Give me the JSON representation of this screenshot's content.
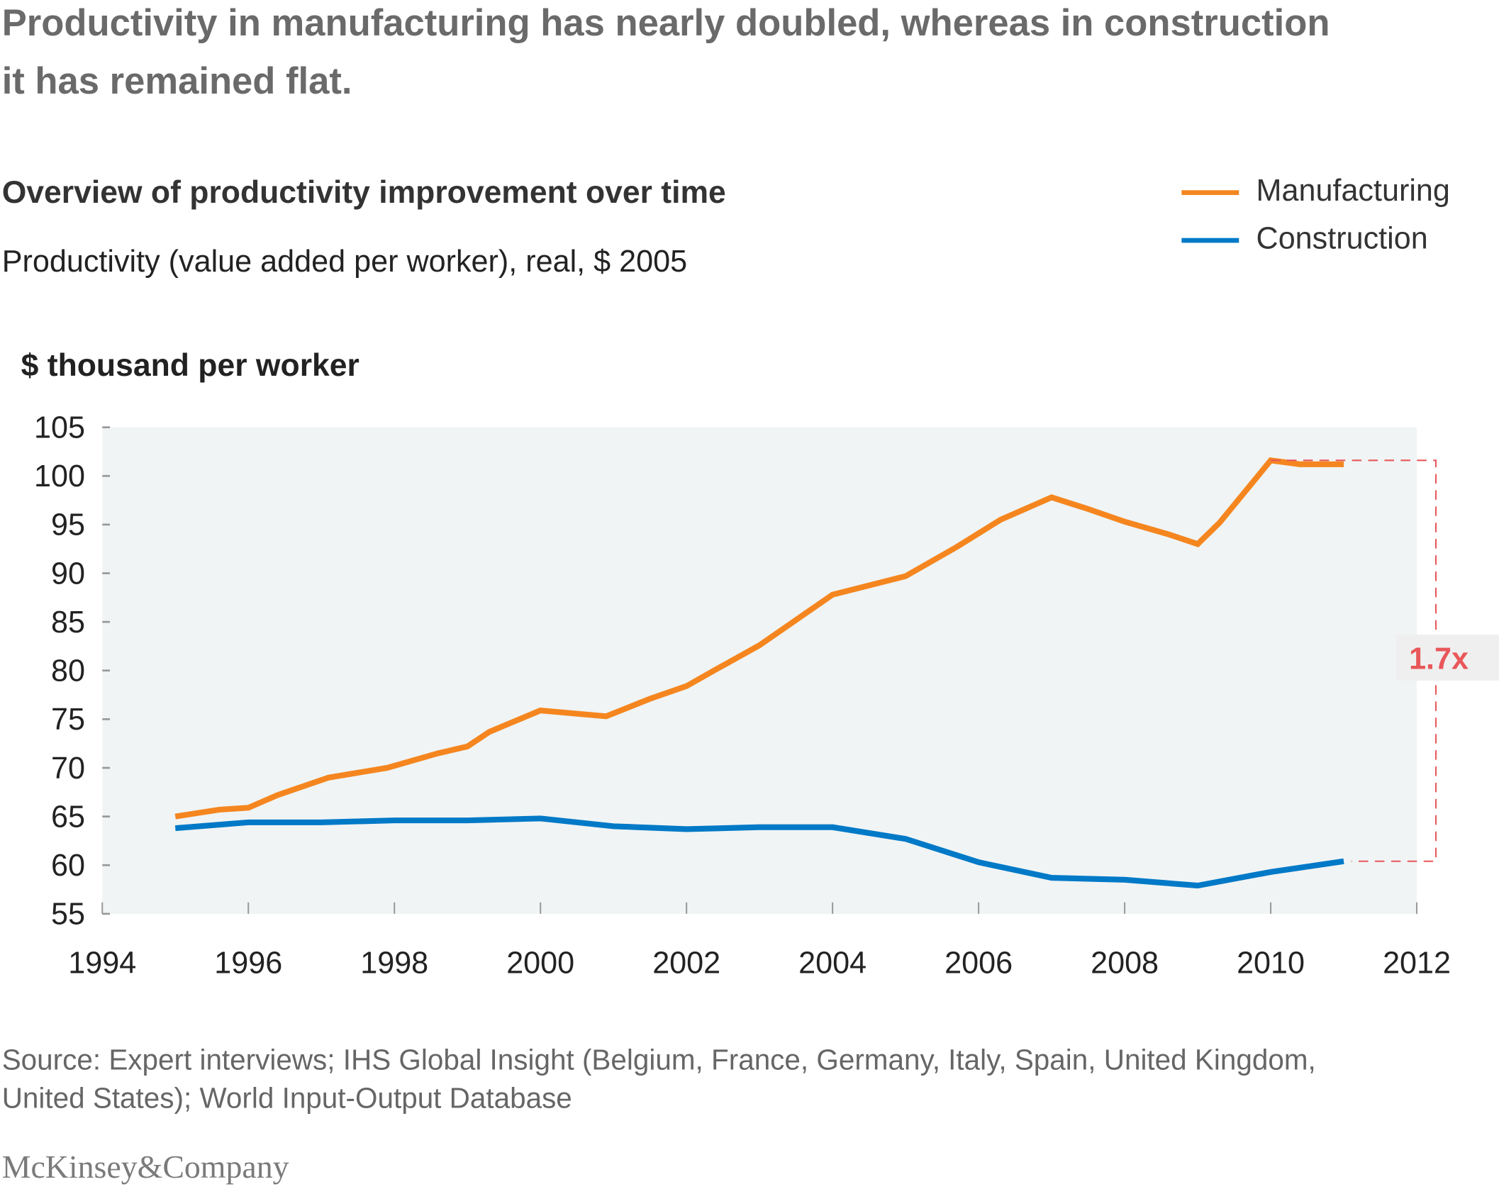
{
  "title": "Productivity in manufacturing has nearly doubled, whereas in construction it has remained flat.",
  "subtitle": "Overview of productivity improvement over time",
  "description": "Productivity (value added per worker), real, $ 2005",
  "source": "Source: Expert interviews; IHS Global Insight (Belgium, France, Germany, Italy, Spain, United Kingdom, United States); World Input-Output Database",
  "logo": "McKinsey&Company",
  "chart_data": {
    "type": "line",
    "ylabel": "$ thousand per worker",
    "xlim": [
      1994,
      2012
    ],
    "ylim": [
      55,
      105
    ],
    "xticks": [
      "1994",
      "1996",
      "1998",
      "2000",
      "2002",
      "2004",
      "2006",
      "2008",
      "2010",
      "2012"
    ],
    "yticks": [
      "55",
      "60",
      "65",
      "70",
      "75",
      "80",
      "85",
      "90",
      "95",
      "100",
      "105"
    ],
    "grid": false,
    "legend": "top-right",
    "annotation": "1.7x",
    "series": [
      {
        "name": "Manufacturing",
        "color": "#f5861f",
        "x": [
          1995,
          1995.6,
          1996,
          1996.4,
          1997.1,
          1997.9,
          1998.6,
          1999,
          1999.3,
          2000,
          2000.9,
          2001.5,
          2002,
          2002.4,
          2003,
          2004,
          2005,
          2005.7,
          2006.3,
          2007,
          2007.5,
          2008,
          2008.6,
          2009,
          2009.3,
          2010,
          2010.4,
          2011
        ],
        "y": [
          65.0,
          65.7,
          65.9,
          67.2,
          69.0,
          70.0,
          71.5,
          72.2,
          73.7,
          75.9,
          75.3,
          77.1,
          78.4,
          80.1,
          82.6,
          87.8,
          89.7,
          92.7,
          95.5,
          97.8,
          96.6,
          95.3,
          94.0,
          93.0,
          95.2,
          101.6,
          101.2,
          101.2
        ]
      },
      {
        "name": "Construction",
        "color": "#0079c7",
        "x": [
          1995,
          1996,
          1997,
          1998,
          1999,
          2000,
          2001,
          2002,
          2003,
          2004,
          2005,
          2006,
          2007,
          2008,
          2009,
          2010,
          2011
        ],
        "y": [
          63.8,
          64.4,
          64.4,
          64.6,
          64.6,
          64.8,
          64.0,
          63.7,
          63.9,
          63.9,
          62.7,
          60.3,
          58.7,
          58.5,
          57.9,
          59.3,
          60.4
        ]
      }
    ],
    "colors": {
      "background": "#f0f4f5",
      "annotation": "#e8575a"
    }
  }
}
